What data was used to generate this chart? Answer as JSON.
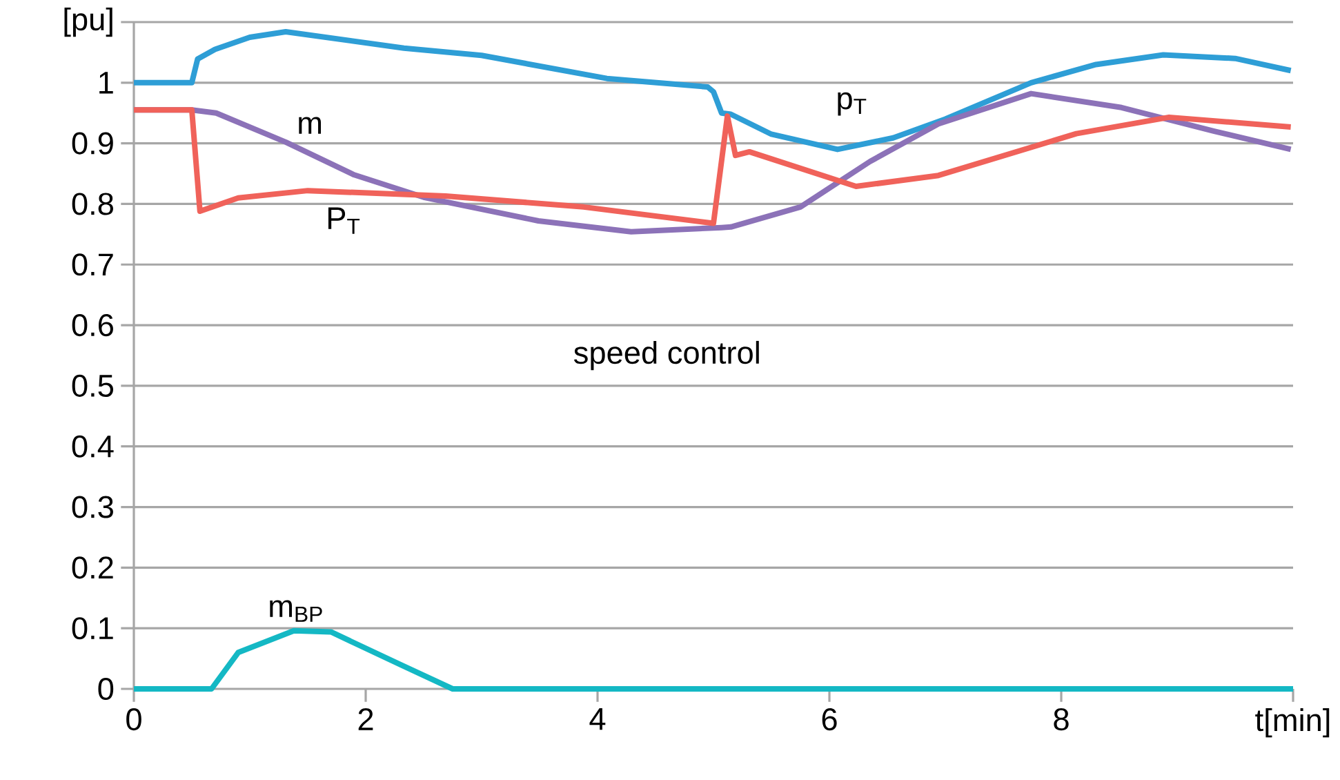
{
  "chart_data": {
    "type": "line",
    "xlim": [
      0,
      10
    ],
    "ylim": [
      0,
      1.1
    ],
    "xticks": [
      0,
      2,
      4,
      6,
      8,
      {
        "value": 10,
        "label": "t[min]"
      }
    ],
    "yticks": [
      0,
      0.1,
      0.2,
      0.3,
      0.4,
      0.5,
      0.6,
      0.7,
      0.8,
      0.9,
      1,
      {
        "value": 1.1,
        "label": "[pu]"
      }
    ],
    "grid": "y",
    "legend": false,
    "marker": "none",
    "line_style": "solid",
    "annotations": [
      "speed control"
    ],
    "series": [
      {
        "name": "p$_{T}$",
        "color": "#2e9ed6",
        "x": [
          0,
          0.5,
          0.55,
          0.7,
          1.0,
          1.31,
          2.33,
          3.0,
          4.08,
          4.95,
          5.0,
          5.07,
          5.15,
          5.5,
          6.07,
          6.55,
          7.0,
          7.74,
          8.3,
          8.88,
          9.5,
          9.98
        ],
        "values": [
          1.0,
          1.0,
          1.039,
          1.055,
          1.075,
          1.084,
          1.057,
          1.045,
          1.007,
          0.993,
          0.985,
          0.95,
          0.948,
          0.915,
          0.89,
          0.909,
          0.94,
          1.0,
          1.03,
          1.046,
          1.04,
          1.02
        ]
      },
      {
        "name": "m",
        "color": "#8c72b8",
        "x": [
          0,
          0.5,
          0.71,
          1.31,
          1.9,
          2.5,
          3.49,
          4.29,
          5.07,
          5.15,
          5.75,
          6.35,
          6.94,
          7.74,
          8.52,
          9.32,
          9.98
        ],
        "values": [
          0.955,
          0.955,
          0.95,
          0.902,
          0.848,
          0.811,
          0.772,
          0.754,
          0.761,
          0.762,
          0.795,
          0.87,
          0.932,
          0.982,
          0.959,
          0.92,
          0.89
        ]
      },
      {
        "name": "P$_{T}$",
        "color": "#f0625a",
        "x": [
          0,
          0.5,
          0.57,
          0.9,
          1.5,
          2.69,
          3.88,
          5.0,
          5.12,
          5.19,
          5.31,
          6.23,
          6.94,
          8.13,
          8.93,
          9.98
        ],
        "values": [
          0.955,
          0.955,
          0.788,
          0.81,
          0.822,
          0.813,
          0.795,
          0.768,
          0.945,
          0.88,
          0.886,
          0.829,
          0.847,
          0.916,
          0.943,
          0.927
        ]
      },
      {
        "name": "m$_{BP}$",
        "color": "#14b8c4",
        "x": [
          0,
          0.67,
          0.9,
          1.38,
          1.7,
          2.3,
          2.75,
          10
        ],
        "values": [
          0,
          0,
          0.06,
          0.096,
          0.094,
          0.04,
          0,
          0
        ]
      }
    ]
  }
}
